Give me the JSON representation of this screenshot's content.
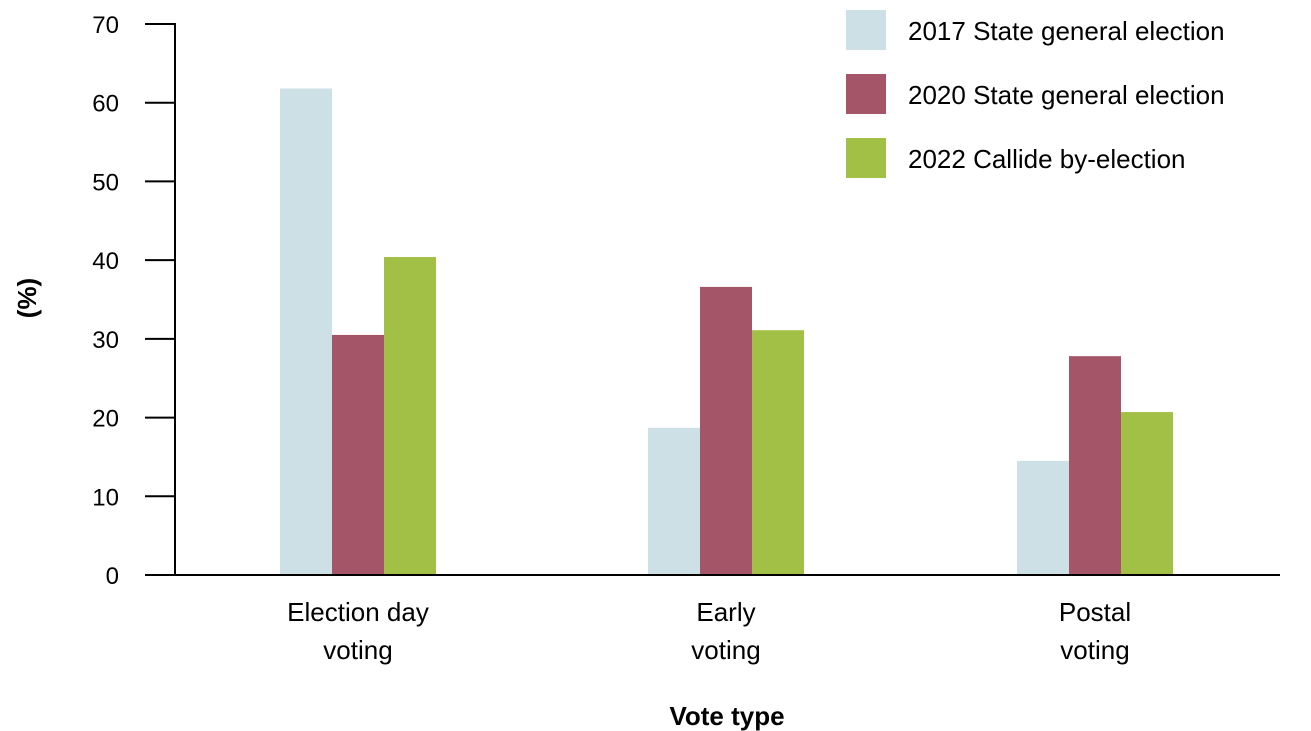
{
  "chart_data": {
    "type": "bar",
    "title": "",
    "xlabel": "Vote type",
    "ylabel": "(%)",
    "ylim": [
      0,
      70
    ],
    "yticks": [
      0,
      10,
      20,
      30,
      40,
      50,
      60,
      70
    ],
    "grid": false,
    "legend_position": "top-right",
    "categories": [
      {
        "lines": [
          "Election day",
          "voting"
        ],
        "muted_lines": []
      },
      {
        "lines": [
          "Early",
          "voting"
        ],
        "muted_lines": [
          1
        ]
      },
      {
        "lines": [
          "Postal",
          "voting"
        ],
        "muted_lines": []
      }
    ],
    "series": [
      {
        "name": "2017 State general election",
        "color": "#cde0e5",
        "values": [
          61.8,
          18.7,
          14.5
        ]
      },
      {
        "name": "2020 State general election",
        "color": "#a45567",
        "values": [
          30.5,
          36.6,
          27.8
        ]
      },
      {
        "name": "2022 Callide by-election",
        "color": "#a2c045",
        "values": [
          40.4,
          31.1,
          20.7
        ]
      }
    ]
  }
}
